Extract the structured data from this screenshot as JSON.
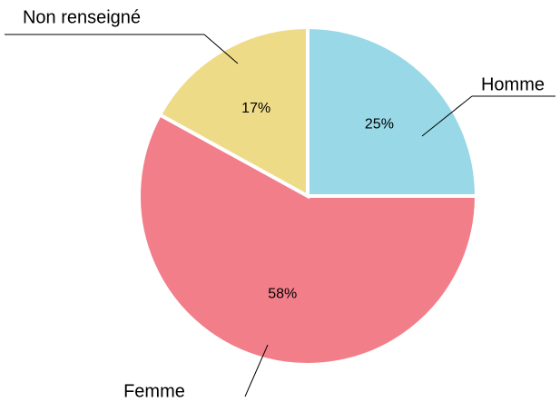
{
  "chart_data": {
    "type": "pie",
    "categories": [
      "Homme",
      "Femme",
      "Non renseigné"
    ],
    "values": [
      25,
      58,
      17
    ],
    "value_labels": [
      "25%",
      "58%",
      "17%"
    ],
    "colors": [
      "#99d8e6",
      "#f27e8a",
      "#eedb88"
    ]
  }
}
